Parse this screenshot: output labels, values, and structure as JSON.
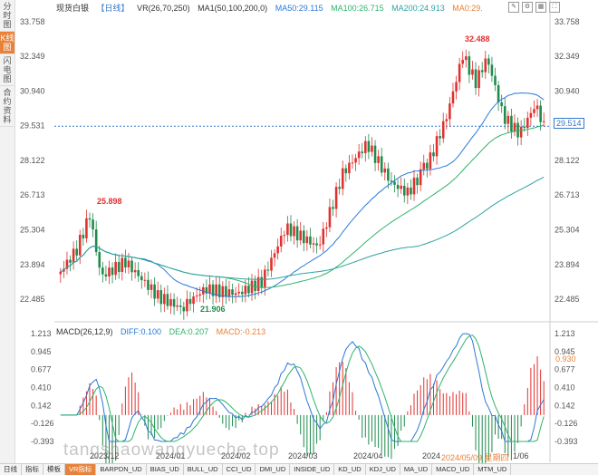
{
  "sidebar": {
    "items": [
      {
        "label": "分时图"
      },
      {
        "label": "K线图"
      },
      {
        "label": "闪电图"
      },
      {
        "label": "合约资料"
      }
    ]
  },
  "header": {
    "instrument": "现货白银",
    "period": "【日线】",
    "vr": "VR(26,70,250)",
    "ma_label": "MA1(50,100,200,0)",
    "ma50": "MA50:29.115",
    "ma100": "MA100:26.715",
    "ma200": "MA200:24.913",
    "ma0": "MA0:29."
  },
  "price_axis": [
    "33.758",
    "32.349",
    "30.940",
    "29.531",
    "28.122",
    "26.713",
    "25.304",
    "23.894",
    "22.485"
  ],
  "current_price": "29.514",
  "extremes": {
    "high": "32.488",
    "mid_high": "25.898",
    "low": "21.906"
  },
  "macd": {
    "title": "MACD(26,12,9)",
    "diff": "DIFF:0.100",
    "dea": "DEA:0.207",
    "macd": "MACD:-0.213",
    "axis": [
      "1.213",
      "0.945",
      "0.677",
      "0.410",
      "0.142",
      "-0.126",
      "-0.393"
    ],
    "current": "0.930"
  },
  "dates": [
    "2023/12",
    "2024/01",
    "2024/02",
    "2024/03",
    "2024/04",
    "2024",
    "2024/05/09 星期四",
    "1/06"
  ],
  "bottom_tabs": [
    "日线",
    "指标",
    "模板",
    "VR指标",
    "BARPDN_UD",
    "BIAS_UD",
    "BULL_UD",
    "CCI_UD",
    "DMI_UD",
    "INSIDE_UD",
    "KD_UD",
    "KDJ_UD",
    "MA_UD",
    "MACD_UD",
    "MTM_UD"
  ],
  "watermark": "tangshaowangyueche.top",
  "colors": {
    "up": "#e0312f",
    "down": "#1f8b4c",
    "ma50": "#2a78d8",
    "ma100": "#2fb36b",
    "ma200": "#2ea3a3",
    "accent": "#e8823a"
  }
}
